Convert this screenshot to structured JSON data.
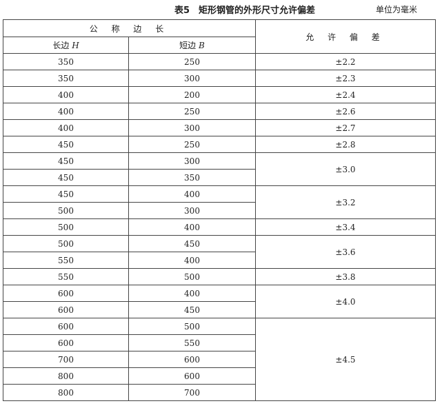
{
  "caption": {
    "title": "表5　矩形钢管的外形尺寸允许偏差",
    "unit": "单位为毫米"
  },
  "header": {
    "group": "公 称 边 长",
    "col_h": "长边",
    "col_h_sym": "H",
    "col_b": "短边",
    "col_b_sym": "B",
    "tolerance": "允 许 偏 差"
  },
  "rows": [
    {
      "h": "350",
      "b": "250"
    },
    {
      "h": "350",
      "b": "300"
    },
    {
      "h": "400",
      "b": "200"
    },
    {
      "h": "400",
      "b": "250"
    },
    {
      "h": "400",
      "b": "300"
    },
    {
      "h": "450",
      "b": "250"
    },
    {
      "h": "450",
      "b": "300"
    },
    {
      "h": "450",
      "b": "350"
    },
    {
      "h": "450",
      "b": "400"
    },
    {
      "h": "500",
      "b": "300"
    },
    {
      "h": "500",
      "b": "400"
    },
    {
      "h": "500",
      "b": "450"
    },
    {
      "h": "550",
      "b": "400"
    },
    {
      "h": "550",
      "b": "500"
    },
    {
      "h": "600",
      "b": "400"
    },
    {
      "h": "600",
      "b": "450"
    },
    {
      "h": "600",
      "b": "500"
    },
    {
      "h": "600",
      "b": "550"
    },
    {
      "h": "700",
      "b": "600"
    },
    {
      "h": "800",
      "b": "600"
    },
    {
      "h": "800",
      "b": "700"
    }
  ],
  "tolerances": [
    {
      "value": "±2.2",
      "span": 1
    },
    {
      "value": "±2.3",
      "span": 1
    },
    {
      "value": "±2.4",
      "span": 1
    },
    {
      "value": "±2.6",
      "span": 1
    },
    {
      "value": "±2.7",
      "span": 1
    },
    {
      "value": "±2.8",
      "span": 1
    },
    {
      "value": "±3.0",
      "span": 2
    },
    {
      "value": "±3.2",
      "span": 2
    },
    {
      "value": "±3.4",
      "span": 1
    },
    {
      "value": "±3.6",
      "span": 2
    },
    {
      "value": "±3.8",
      "span": 1
    },
    {
      "value": "±4.0",
      "span": 2
    },
    {
      "value": "±4.5",
      "span": 5
    }
  ]
}
